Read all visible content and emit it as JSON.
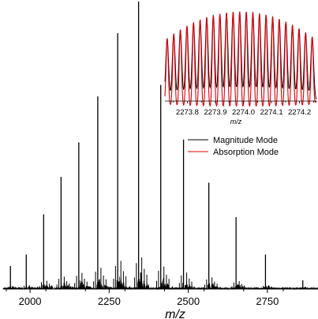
{
  "chart_data": [
    {
      "type": "line",
      "xlabel": "m/z",
      "ylabel": "",
      "title": "",
      "xlim": [
        1915,
        2910
      ],
      "x_ticks": [
        2000,
        2250,
        2500,
        2750
      ],
      "x_tick_labels": [
        "2000",
        "2250",
        "2500",
        "2750"
      ],
      "y_axis_visible": false,
      "grid": false,
      "peaks": {
        "x": [
          1938,
          1988,
          2043,
          2098,
          2154,
          2214,
          2277,
          2343,
          2413,
          2485,
          2565,
          2651,
          2744,
          2862
        ],
        "height": [
          0.08,
          0.12,
          0.26,
          0.39,
          0.51,
          0.67,
          0.89,
          1.0,
          0.71,
          0.52,
          0.37,
          0.25,
          0.12,
          0.03
        ]
      },
      "series": [
        {
          "name": "Magnitude Mode",
          "color": "#000000"
        },
        {
          "name": "Absorption Mode",
          "color": "#e0000a"
        }
      ],
      "legend": {
        "position": "right-center",
        "entries": [
          "Magnitude Mode",
          "Absorption Mode"
        ]
      }
    },
    {
      "type": "line",
      "role": "inset",
      "xlabel": "m/z",
      "xlim": [
        2273.72,
        2274.26
      ],
      "x_ticks": [
        2273.8,
        2273.9,
        2274.0,
        2274.1,
        2274.2
      ],
      "x_tick_labels": [
        "2273.8",
        "2273.9",
        "2274.0",
        "2274.1",
        "2274.2"
      ],
      "peak_count": 23,
      "peak_spacing": 0.0235,
      "first_peak": 2273.728,
      "envelope": {
        "center": 2273.99,
        "min": 0.68,
        "max": 1.0
      },
      "series": [
        {
          "name": "Magnitude Mode",
          "color": "#000000"
        },
        {
          "name": "Absorption Mode",
          "color": "#e0000a"
        }
      ]
    }
  ],
  "legend": {
    "magnitude_label": "Magnitude Mode",
    "absorption_label": "Absorption Mode",
    "magnitude_color": "#000000",
    "absorption_color": "#e0000a"
  }
}
